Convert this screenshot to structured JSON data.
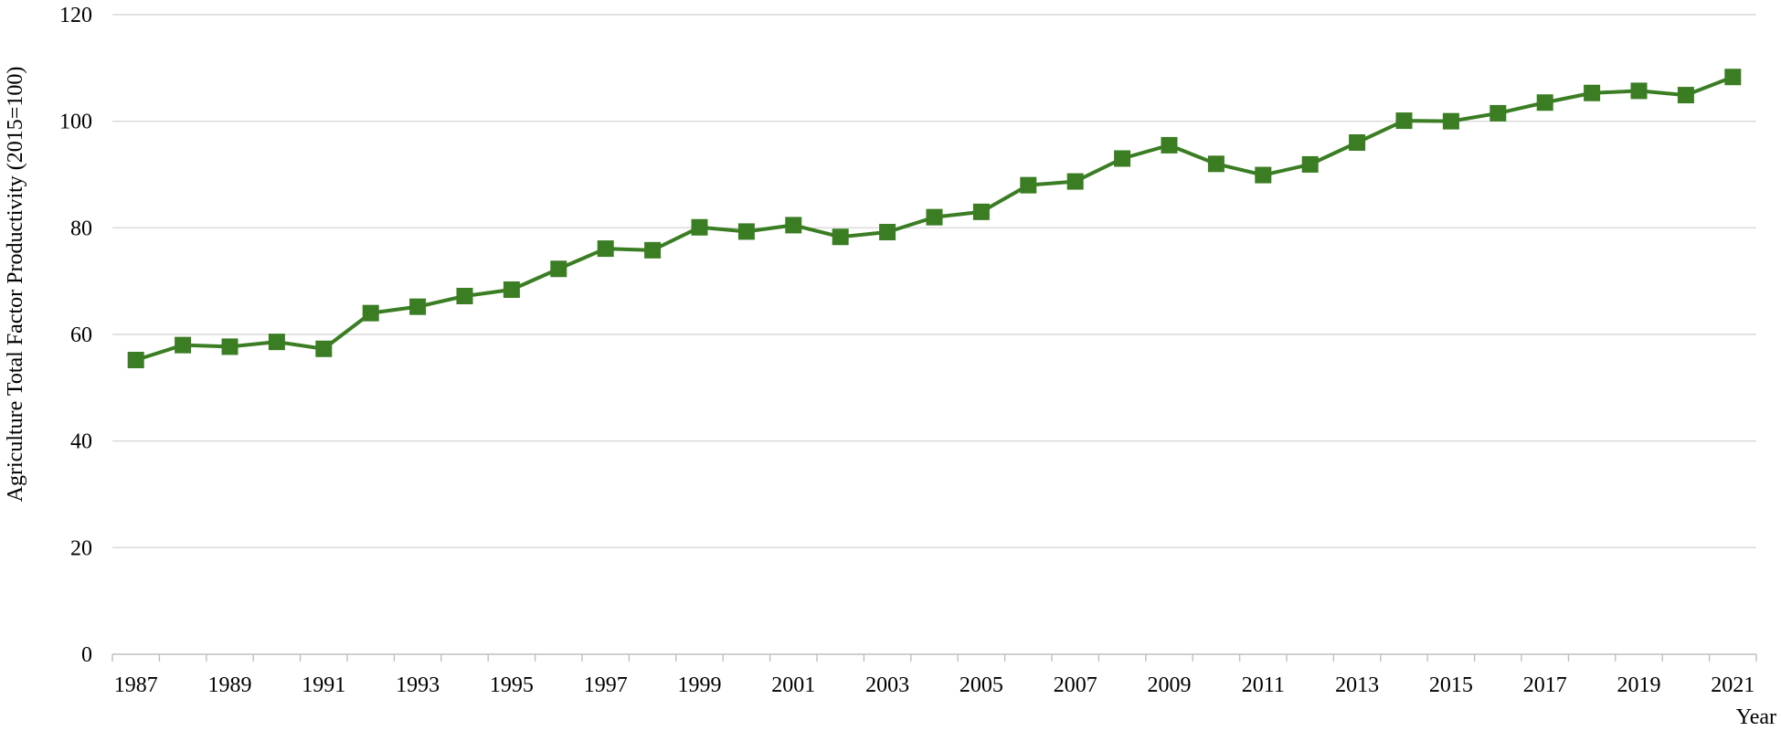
{
  "chart_data": {
    "type": "line",
    "title": "",
    "xlabel": "Year",
    "ylabel": "Agriculture Total Factor Productivity (2015=100)",
    "ylim": [
      0,
      120
    ],
    "yticks": [
      0,
      20,
      40,
      60,
      80,
      100,
      120
    ],
    "grid": true,
    "legend": "none",
    "x": [
      1987,
      1988,
      1989,
      1990,
      1991,
      1992,
      1993,
      1994,
      1995,
      1996,
      1997,
      1998,
      1999,
      2000,
      2001,
      2002,
      2003,
      2004,
      2005,
      2006,
      2007,
      2008,
      2009,
      2010,
      2011,
      2012,
      2013,
      2014,
      2015,
      2016,
      2017,
      2018,
      2019,
      2020,
      2021
    ],
    "xtick_labels": [
      "1987",
      "1989",
      "1991",
      "1993",
      "1995",
      "1997",
      "1999",
      "2001",
      "2003",
      "2005",
      "2007",
      "2009",
      "2011",
      "2013",
      "2015",
      "2017",
      "2019",
      "2021"
    ],
    "series": [
      {
        "color": "#3a7d23",
        "marker": "square",
        "values": [
          55.2,
          58.0,
          57.7,
          58.6,
          57.3,
          64.0,
          65.2,
          67.2,
          68.4,
          72.3,
          76.1,
          75.8,
          80.1,
          79.3,
          80.5,
          78.3,
          79.2,
          82.0,
          83.0,
          88.0,
          88.7,
          93.0,
          95.5,
          92.0,
          89.9,
          91.9,
          96.0,
          100.1,
          100.0,
          101.5,
          103.5,
          105.3,
          105.7,
          104.9,
          108.3
        ]
      }
    ]
  }
}
